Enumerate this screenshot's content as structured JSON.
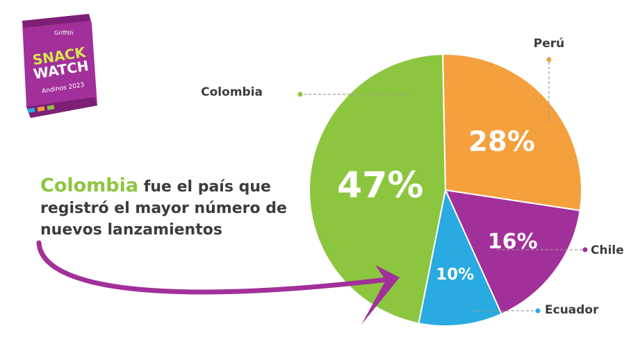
{
  "logo": {
    "brand": "Griffith",
    "title_line1": "SNACK",
    "title_line2": "WATCH",
    "subtitle": "Andinos 2023"
  },
  "headline": {
    "highlight": "Colombia",
    "rest": " fue el país que registró el  mayor número de nuevos lanzamientos"
  },
  "chart_data": {
    "type": "pie",
    "slices": [
      {
        "label": "Colombia",
        "value": 47,
        "display": "47%",
        "color": "#8cc63f"
      },
      {
        "label": "Perú",
        "value": 28,
        "display": "28%",
        "color": "#f4a03d"
      },
      {
        "label": "Chile",
        "value": 16,
        "display": "16%",
        "color": "#a2309a"
      },
      {
        "label": "Ecuador",
        "value": 10,
        "display": "10%",
        "color": "#29aae1"
      }
    ],
    "title": "",
    "legend": "callout labels beside slices"
  },
  "colors": {
    "text": "#3c3c3c",
    "accent_green": "#8cc63f",
    "arrow": "#a2309a"
  }
}
